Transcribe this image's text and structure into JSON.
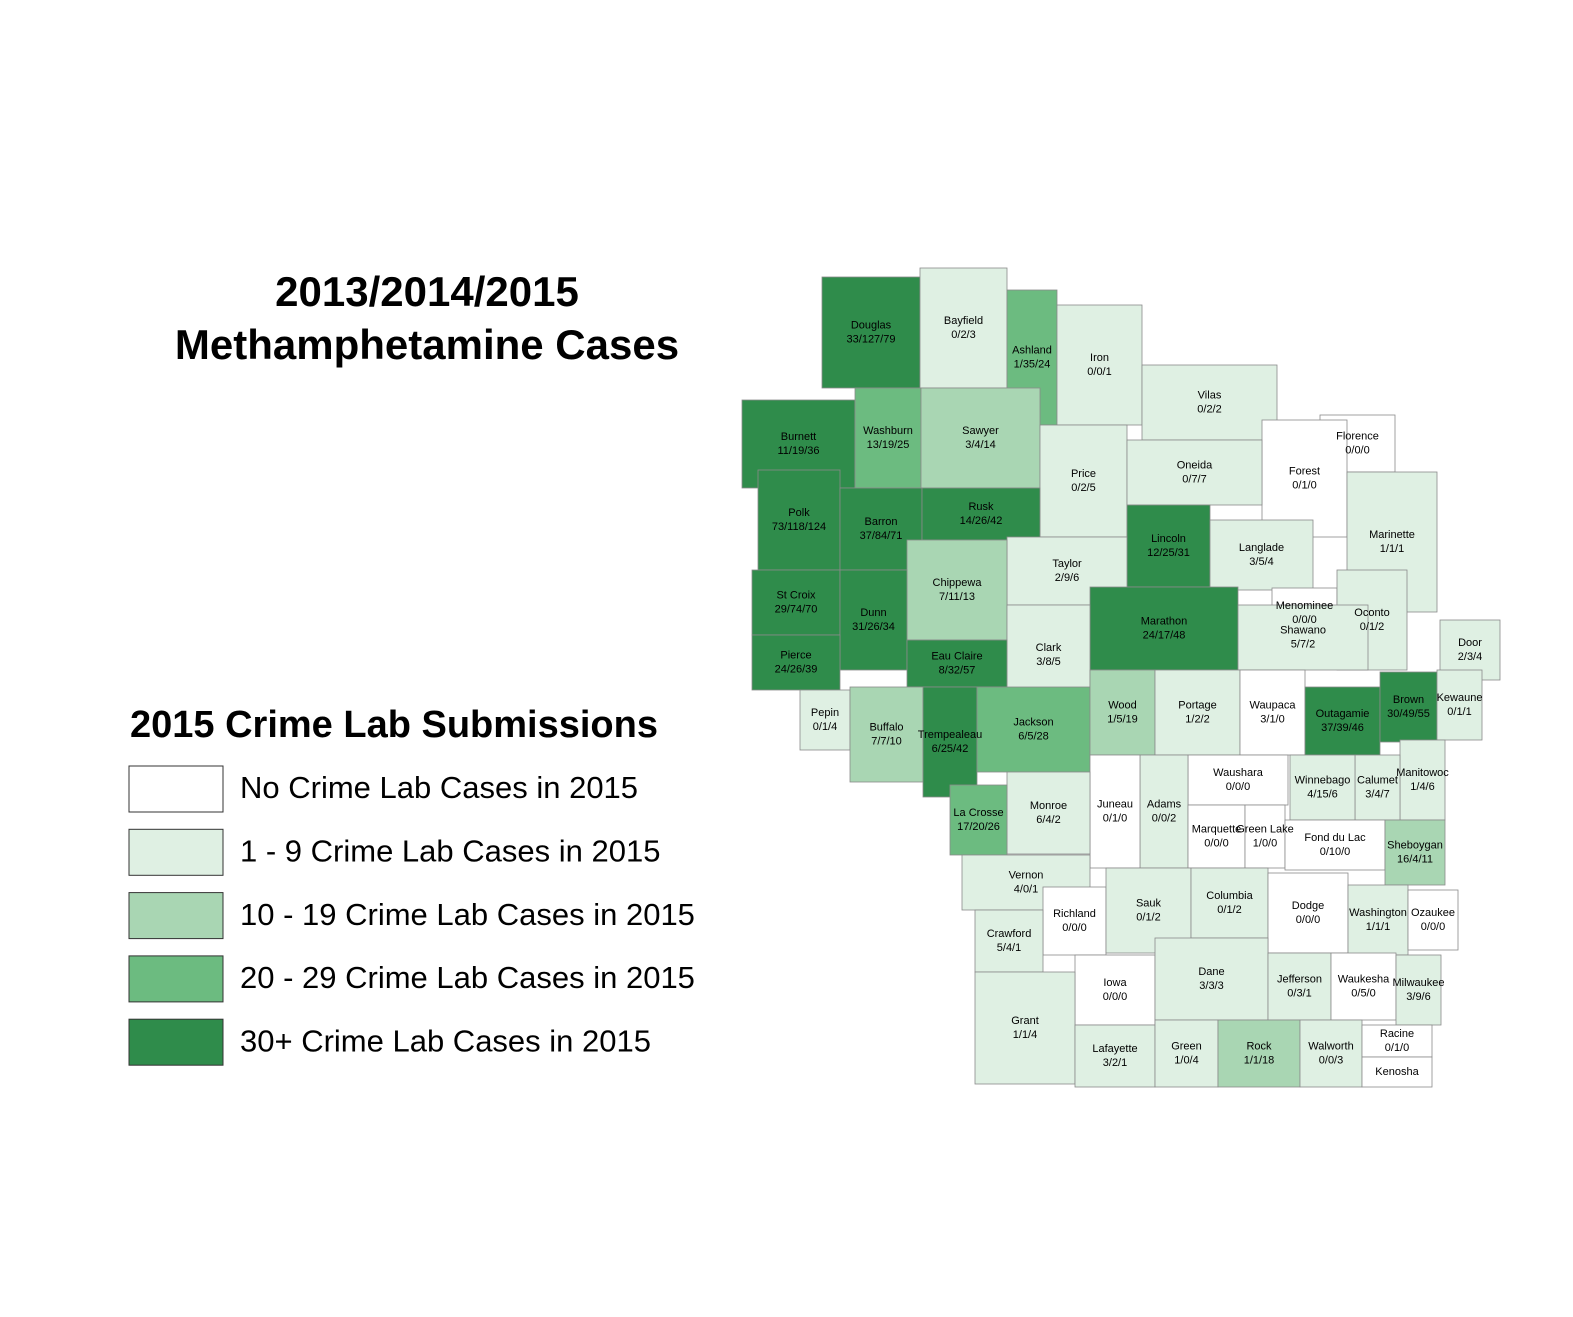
{
  "title": [
    "2013/2014/2015",
    "Methamphetamine Cases"
  ],
  "legend": {
    "title": "2015 Crime Lab Submissions",
    "items": [
      {
        "label": "No Crime Lab Cases in 2015",
        "color": "#ffffff"
      },
      {
        "label": "1 - 9 Crime Lab Cases in 2015",
        "color": "#dff0e3"
      },
      {
        "label": "10 - 19 Crime Lab Cases in 2015",
        "color": "#a9d6b3"
      },
      {
        "label": "20 - 29 Crime Lab Cases in 2015",
        "color": "#6cbb80"
      },
      {
        "label": "30+ Crime Lab Cases in 2015",
        "color": "#2f8c4b"
      }
    ]
  },
  "counties": [
    {
      "name": "Douglas",
      "label": "33/127/79",
      "color": "#2f8c4b"
    },
    {
      "name": "Bayfield",
      "label": "0/2/3",
      "color": "#dff0e3"
    },
    {
      "name": "Ashland",
      "label": "1/35/24",
      "color": "#6cbb80"
    },
    {
      "name": "Iron",
      "label": "0/0/1",
      "color": "#dff0e3"
    },
    {
      "name": "Vilas",
      "label": "0/2/2",
      "color": "#dff0e3"
    },
    {
      "name": "Florence",
      "label": "0/0/0",
      "color": "#ffffff"
    },
    {
      "name": "Forest",
      "label": "0/1/0",
      "color": "#ffffff"
    },
    {
      "name": "Burnett",
      "label": "11/19/36",
      "color": "#2f8c4b"
    },
    {
      "name": "Washburn",
      "label": "13/19/25",
      "color": "#6cbb80"
    },
    {
      "name": "Sawyer",
      "label": "3/4/14",
      "color": "#a9d6b3"
    },
    {
      "name": "Price",
      "label": "0/2/5",
      "color": "#dff0e3"
    },
    {
      "name": "Oneida",
      "label": "0/7/7",
      "color": "#dff0e3"
    },
    {
      "name": "Marinette",
      "label": "1/1/1",
      "color": "#dff0e3"
    },
    {
      "name": "Polk",
      "label": "73/118/124",
      "color": "#2f8c4b"
    },
    {
      "name": "Barron",
      "label": "37/84/71",
      "color": "#2f8c4b"
    },
    {
      "name": "Rusk",
      "label": "14/26/42",
      "color": "#2f8c4b"
    },
    {
      "name": "Lincoln",
      "label": "12/25/31",
      "color": "#2f8c4b"
    },
    {
      "name": "Langlade",
      "label": "3/5/4",
      "color": "#dff0e3"
    },
    {
      "name": "Taylor",
      "label": "2/9/6",
      "color": "#dff0e3"
    },
    {
      "name": "Chippewa",
      "label": "7/11/13",
      "color": "#a9d6b3"
    },
    {
      "name": "St Croix",
      "label": "29/74/70",
      "color": "#2f8c4b"
    },
    {
      "name": "Dunn",
      "label": "31/26/34",
      "color": "#2f8c4b"
    },
    {
      "name": "Menominee",
      "label": "0/0/0",
      "color": "#ffffff"
    },
    {
      "name": "Oconto",
      "label": "0/1/2",
      "color": "#dff0e3"
    },
    {
      "name": "Marathon",
      "label": "24/17/48",
      "color": "#2f8c4b"
    },
    {
      "name": "Clark",
      "label": "3/8/5",
      "color": "#dff0e3"
    },
    {
      "name": "Eau Claire",
      "label": "8/32/57",
      "color": "#2f8c4b"
    },
    {
      "name": "Pierce",
      "label": "24/26/39",
      "color": "#2f8c4b"
    },
    {
      "name": "Shawano",
      "label": "5/7/2",
      "color": "#dff0e3"
    },
    {
      "name": "Door",
      "label": "2/3/4",
      "color": "#dff0e3"
    },
    {
      "name": "Pepin",
      "label": "0/1/4",
      "color": "#dff0e3"
    },
    {
      "name": "Buffalo",
      "label": "7/7/10",
      "color": "#a9d6b3"
    },
    {
      "name": "Trempealeau",
      "label": "6/25/42",
      "color": "#2f8c4b"
    },
    {
      "name": "Jackson",
      "label": "6/5/28",
      "color": "#6cbb80"
    },
    {
      "name": "Wood",
      "label": "1/5/19",
      "color": "#a9d6b3"
    },
    {
      "name": "Portage",
      "label": "1/2/2",
      "color": "#dff0e3"
    },
    {
      "name": "Waupaca",
      "label": "3/1/0",
      "color": "#ffffff"
    },
    {
      "name": "Outagamie",
      "label": "37/39/46",
      "color": "#2f8c4b"
    },
    {
      "name": "Brown",
      "label": "30/49/55",
      "color": "#2f8c4b"
    },
    {
      "name": "Kewaune",
      "label": "0/1/1",
      "color": "#dff0e3"
    },
    {
      "name": "Manitowoc",
      "label": "1/4/6",
      "color": "#dff0e3"
    },
    {
      "name": "Calumet",
      "label": "3/4/7",
      "color": "#dff0e3"
    },
    {
      "name": "Winnebago",
      "label": "4/15/6",
      "color": "#dff0e3"
    },
    {
      "name": "Waushara",
      "label": "0/0/0",
      "color": "#ffffff"
    },
    {
      "name": "Adams",
      "label": "0/0/2",
      "color": "#dff0e3"
    },
    {
      "name": "Juneau",
      "label": "0/1/0",
      "color": "#ffffff"
    },
    {
      "name": "Monroe",
      "label": "6/4/2",
      "color": "#dff0e3"
    },
    {
      "name": "La Crosse",
      "label": "17/20/26",
      "color": "#6cbb80"
    },
    {
      "name": "Marquette",
      "label": "0/0/0",
      "color": "#ffffff"
    },
    {
      "name": "Green Lake",
      "label": "1/0/0",
      "color": "#ffffff"
    },
    {
      "name": "Fond du Lac",
      "label": "0/10/0",
      "color": "#ffffff"
    },
    {
      "name": "Sheboygan",
      "label": "16/4/11",
      "color": "#a9d6b3"
    },
    {
      "name": "Vernon",
      "label": "4/0/1",
      "color": "#dff0e3"
    },
    {
      "name": "Richland",
      "label": "0/0/0",
      "color": "#ffffff"
    },
    {
      "name": "Sauk",
      "label": "0/1/2",
      "color": "#dff0e3"
    },
    {
      "name": "Columbia",
      "label": "0/1/2",
      "color": "#dff0e3"
    },
    {
      "name": "Dodge",
      "label": "0/0/0",
      "color": "#ffffff"
    },
    {
      "name": "Washington",
      "label": "1/1/1",
      "color": "#dff0e3"
    },
    {
      "name": "Ozaukee",
      "label": "0/0/0",
      "color": "#ffffff"
    },
    {
      "name": "Crawford",
      "label": "5/4/1",
      "color": "#dff0e3"
    },
    {
      "name": "Iowa",
      "label": "0/0/0",
      "color": "#ffffff"
    },
    {
      "name": "Dane",
      "label": "3/3/3",
      "color": "#dff0e3"
    },
    {
      "name": "Jefferson",
      "label": "0/3/1",
      "color": "#dff0e3"
    },
    {
      "name": "Waukesha",
      "label": "0/5/0",
      "color": "#ffffff"
    },
    {
      "name": "Milwaukee",
      "label": "3/9/6",
      "color": "#dff0e3"
    },
    {
      "name": "Grant",
      "label": "1/1/4",
      "color": "#dff0e3"
    },
    {
      "name": "Lafayette",
      "label": "3/2/1",
      "color": "#dff0e3"
    },
    {
      "name": "Green",
      "label": "1/0/4",
      "color": "#dff0e3"
    },
    {
      "name": "Rock",
      "label": "1/1/18",
      "color": "#a9d6b3"
    },
    {
      "name": "Walworth",
      "label": "0/0/3",
      "color": "#dff0e3"
    },
    {
      "name": "Racine",
      "label": "0/1/0",
      "color": "#ffffff"
    },
    {
      "name": "Kenosha",
      "color": "#ffffff"
    }
  ]
}
